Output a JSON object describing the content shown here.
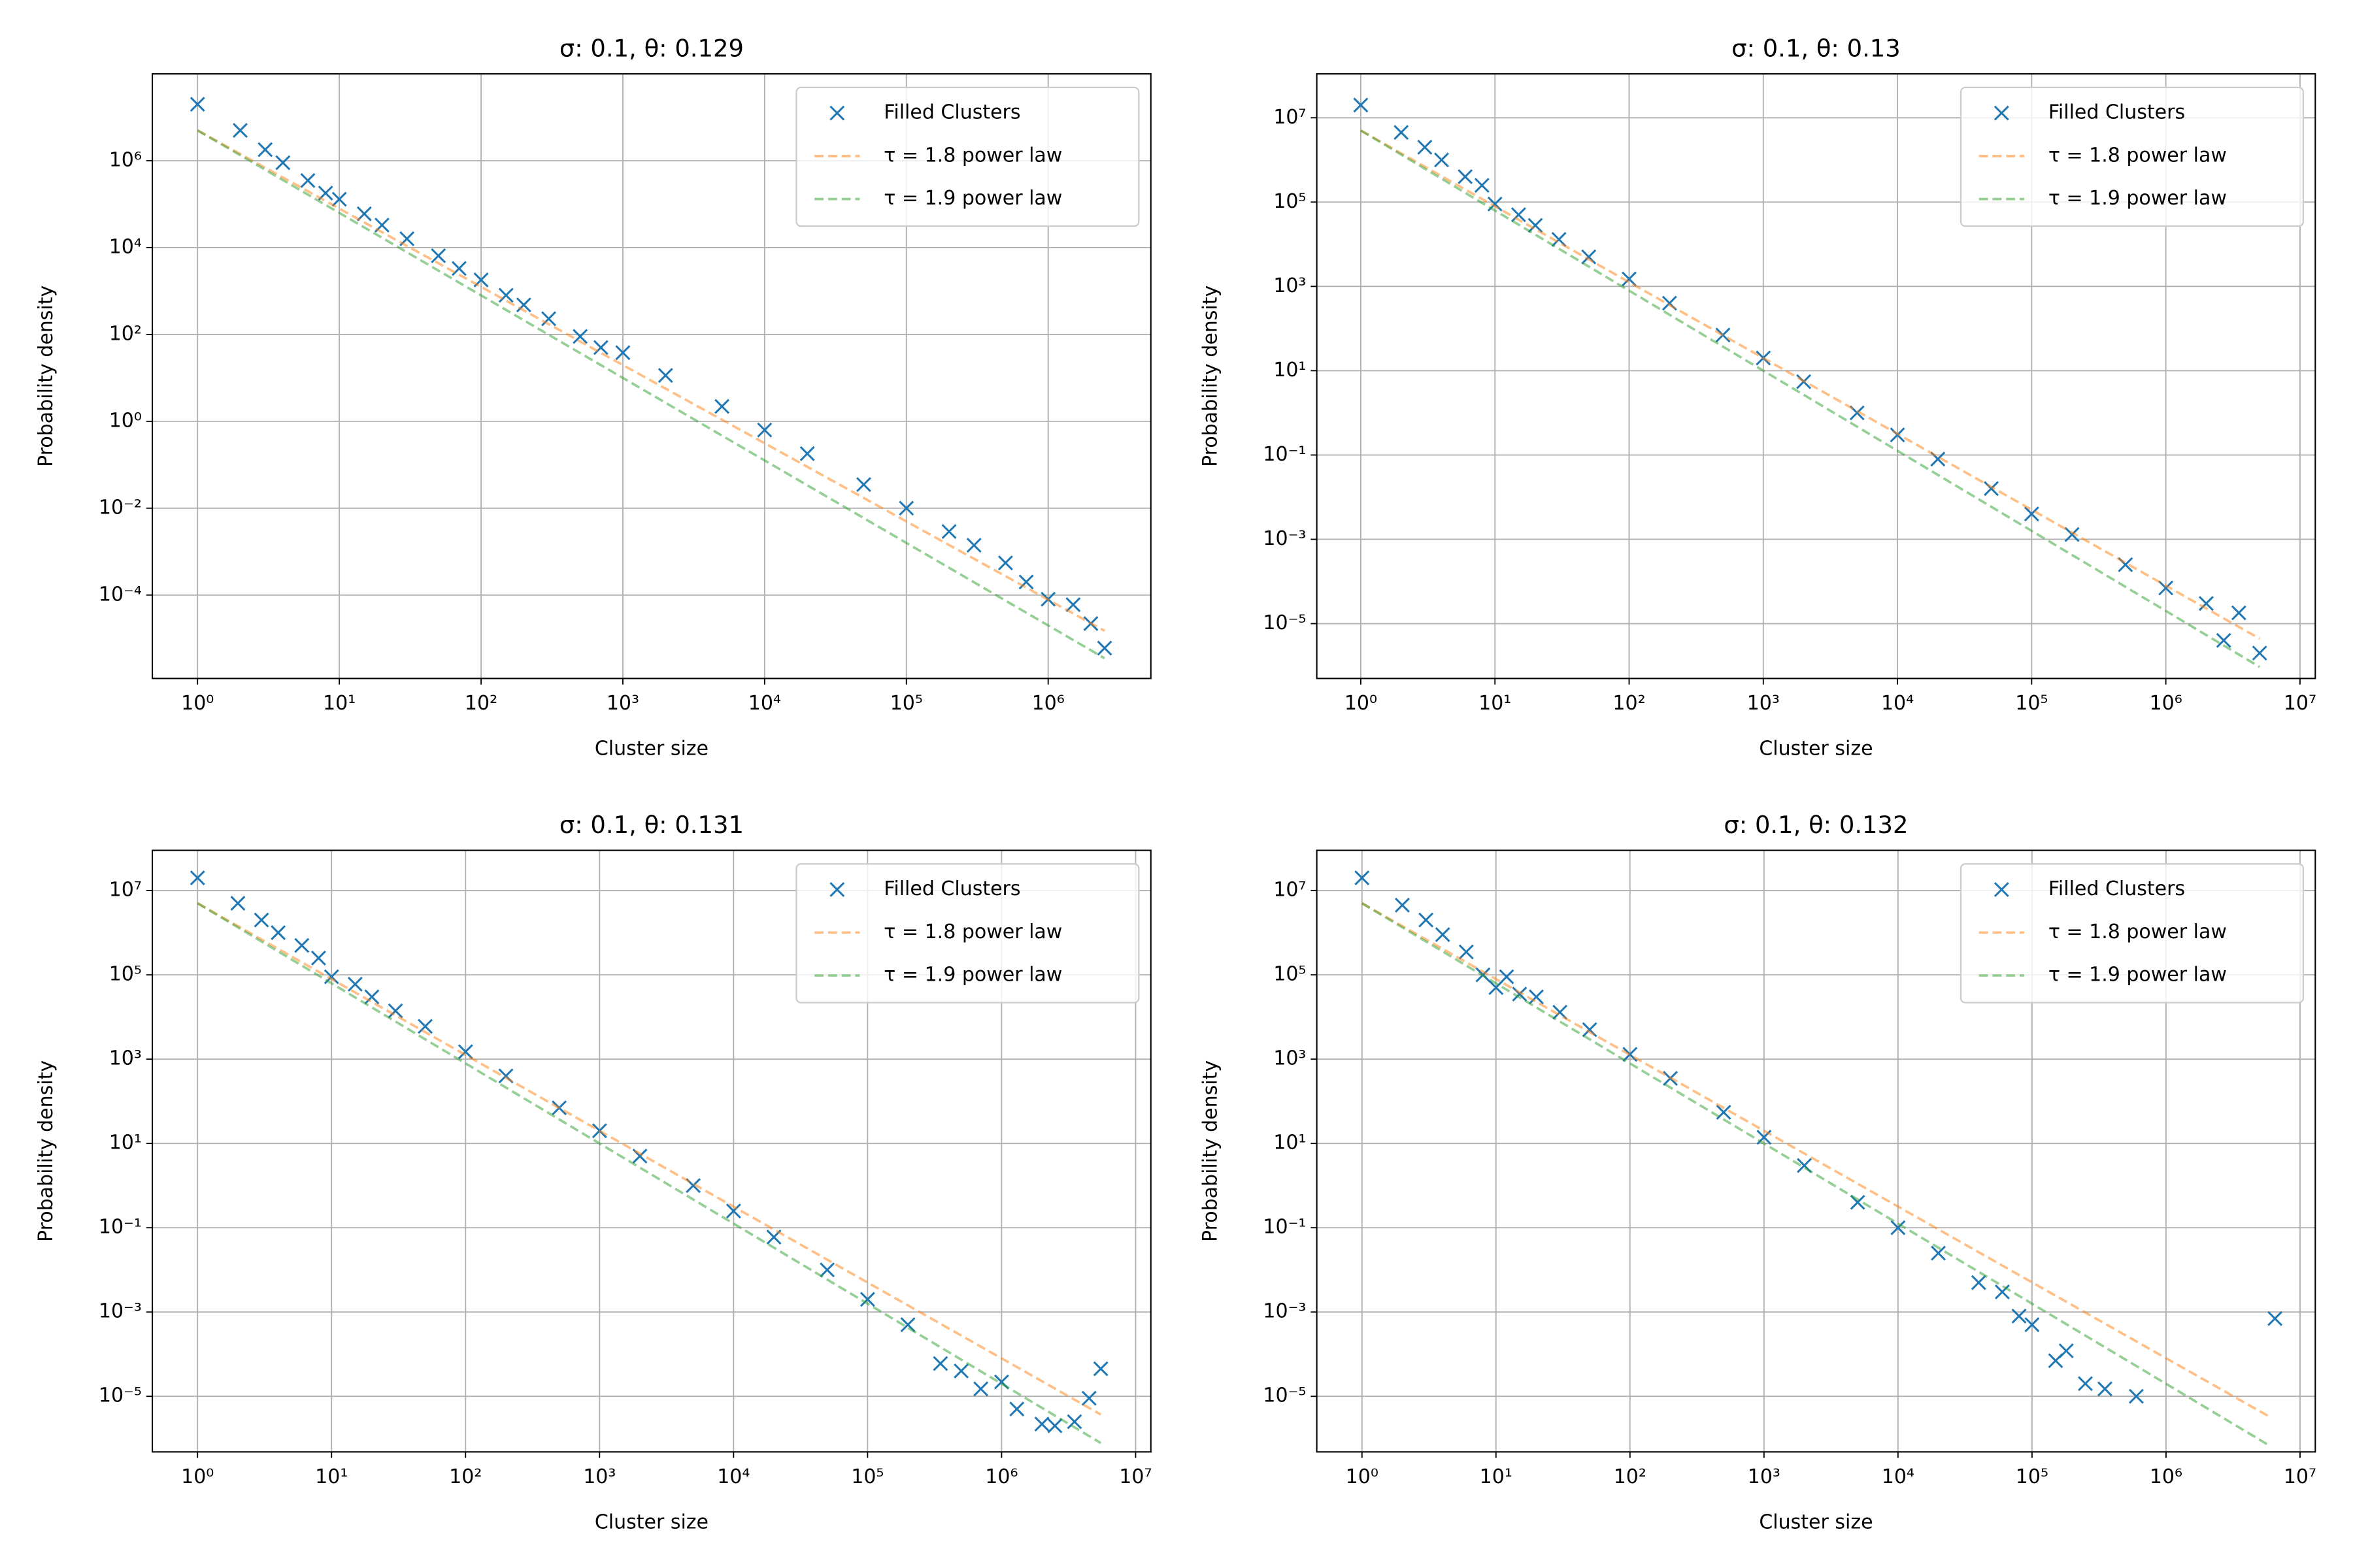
{
  "chart_data": [
    {
      "type": "scatter",
      "title": "σ: 0.1, θ: 0.129",
      "x_label": "Cluster size",
      "y_label": "Probability density",
      "xscale": "log",
      "yscale": "log",
      "grid": true,
      "legend": "upper right",
      "xlim": [
        0.48,
        5300000
      ],
      "ylim": [
        1.2e-06,
        100000000
      ],
      "xticks": [
        {
          "value": 1,
          "label": "10⁰"
        },
        {
          "value": 10,
          "label": "10¹"
        },
        {
          "value": 100,
          "label": "10²"
        },
        {
          "value": 1000,
          "label": "10³"
        },
        {
          "value": 10000,
          "label": "10⁴"
        },
        {
          "value": 100000,
          "label": "10⁵"
        },
        {
          "value": 1000000,
          "label": "10⁶"
        }
      ],
      "yticks": [
        {
          "value": 0.0001,
          "label": "10⁻⁴"
        },
        {
          "value": 0.01,
          "label": "10⁻²"
        },
        {
          "value": 1,
          "label": "10⁰"
        },
        {
          "value": 100,
          "label": "10²"
        },
        {
          "value": 10000,
          "label": "10⁴"
        },
        {
          "value": 1000000,
          "label": "10⁶"
        }
      ],
      "series": [
        {
          "name": "Filled Clusters",
          "color": "#1f77b4",
          "marker": "x",
          "x": [
            1,
            2,
            3,
            4,
            6,
            8,
            10,
            15,
            20,
            30,
            50,
            70,
            100,
            150,
            200,
            300,
            500,
            700,
            1000,
            2000,
            5000,
            10000,
            20000,
            50000,
            100000,
            200000,
            300000,
            500000,
            700000,
            1000000,
            1500000,
            2000000,
            2500000
          ],
          "values": [
            20000000,
            5000000,
            1800000,
            900000,
            350000,
            180000,
            130000,
            60000,
            33000,
            16000,
            6500,
            3300,
            1800,
            800,
            480,
            230,
            90,
            50,
            38,
            11.4,
            2.2,
            0.63,
            0.18,
            0.035,
            0.01,
            0.0029,
            0.0014,
            0.00055,
            0.0002,
            8e-05,
            6e-05,
            2.2e-05,
            6e-06
          ]
        },
        {
          "name": "τ = 1.8 power law",
          "color": "#ff7f0e",
          "linestyle": "--",
          "x": [
            1,
            2500000
          ],
          "values": [
            5000000,
            1.5e-05
          ]
        },
        {
          "name": "τ = 1.9 power law",
          "color": "#2ca02c",
          "linestyle": "--",
          "x": [
            1,
            2500000
          ],
          "values": [
            5000000,
            3.5e-06
          ]
        }
      ]
    },
    {
      "type": "scatter",
      "title": "σ: 0.1, θ: 0.13",
      "x_label": "Cluster size",
      "y_label": "Probability density",
      "xscale": "log",
      "yscale": "log",
      "grid": true,
      "legend": "upper right",
      "xlim": [
        0.47,
        13000000
      ],
      "ylim": [
        5e-07,
        110000000
      ],
      "xticks": [
        {
          "value": 1,
          "label": "10⁰"
        },
        {
          "value": 10,
          "label": "10¹"
        },
        {
          "value": 100,
          "label": "10²"
        },
        {
          "value": 1000,
          "label": "10³"
        },
        {
          "value": 10000,
          "label": "10⁴"
        },
        {
          "value": 100000,
          "label": "10⁵"
        },
        {
          "value": 1000000,
          "label": "10⁶"
        },
        {
          "value": 10000000,
          "label": "10⁷"
        }
      ],
      "yticks": [
        {
          "value": 1e-05,
          "label": "10⁻⁵"
        },
        {
          "value": 0.001,
          "label": "10⁻³"
        },
        {
          "value": 0.1,
          "label": "10⁻¹"
        },
        {
          "value": 10,
          "label": "10¹"
        },
        {
          "value": 1000,
          "label": "10³"
        },
        {
          "value": 100000,
          "label": "10⁵"
        },
        {
          "value": 10000000,
          "label": "10⁷"
        }
      ],
      "series": [
        {
          "name": "Filled Clusters",
          "color": "#1f77b4",
          "marker": "x",
          "x": [
            1,
            2,
            3,
            4,
            6,
            8,
            10,
            15,
            20,
            30,
            50,
            100,
            200,
            500,
            1000,
            2000,
            5000,
            10000,
            20000,
            50000,
            100000,
            200000,
            500000,
            1000000,
            2000000,
            2700000,
            3500000,
            5000000
          ],
          "values": [
            20000000,
            4500000,
            2000000,
            1000000,
            400000,
            250000,
            90000,
            50000,
            28000,
            13000,
            5000,
            1500,
            400,
            70,
            20,
            5.5,
            1,
            0.3,
            0.08,
            0.016,
            0.004,
            0.0013,
            0.00025,
            7e-05,
            3e-05,
            4e-06,
            1.8e-05,
            2e-06
          ]
        },
        {
          "name": "τ = 1.8 power law",
          "color": "#ff7f0e",
          "linestyle": "--",
          "x": [
            1,
            5000000
          ],
          "values": [
            5000000,
            4.4e-06
          ]
        },
        {
          "name": "τ = 1.9 power law",
          "color": "#2ca02c",
          "linestyle": "--",
          "x": [
            1,
            5000000
          ],
          "values": [
            5000000,
            9.4e-07
          ]
        }
      ]
    },
    {
      "type": "scatter",
      "title": "σ: 0.1, θ: 0.131",
      "x_label": "Cluster size",
      "y_label": "Probability density",
      "xscale": "log",
      "yscale": "log",
      "grid": true,
      "legend": "upper right",
      "xlim": [
        0.46,
        13000000
      ],
      "ylim": [
        4.8e-07,
        90000000
      ],
      "xticks": [
        {
          "value": 1,
          "label": "10⁰"
        },
        {
          "value": 10,
          "label": "10¹"
        },
        {
          "value": 100,
          "label": "10²"
        },
        {
          "value": 1000,
          "label": "10³"
        },
        {
          "value": 10000,
          "label": "10⁴"
        },
        {
          "value": 100000,
          "label": "10⁵"
        },
        {
          "value": 1000000,
          "label": "10⁶"
        },
        {
          "value": 10000000,
          "label": "10⁷"
        }
      ],
      "yticks": [
        {
          "value": 1e-05,
          "label": "10⁻⁵"
        },
        {
          "value": 0.001,
          "label": "10⁻³"
        },
        {
          "value": 0.1,
          "label": "10⁻¹"
        },
        {
          "value": 10,
          "label": "10¹"
        },
        {
          "value": 1000,
          "label": "10³"
        },
        {
          "value": 100000,
          "label": "10⁵"
        },
        {
          "value": 10000000,
          "label": "10⁷"
        }
      ],
      "series": [
        {
          "name": "Filled Clusters",
          "color": "#1f77b4",
          "marker": "x",
          "x": [
            1,
            2,
            3,
            4,
            6,
            8,
            10,
            15,
            20,
            30,
            50,
            100,
            200,
            500,
            1000,
            2000,
            5000,
            10000,
            20000,
            50000,
            100000,
            200000,
            350000,
            500000,
            700000,
            1000000,
            1300000,
            2000000,
            2500000,
            3500000,
            4500000,
            5500000
          ],
          "values": [
            20000000,
            5000000,
            2000000,
            1000000,
            500000,
            250000,
            90000,
            60000,
            30000,
            14000,
            6000,
            1500,
            400,
            70,
            20,
            5,
            1,
            0.25,
            0.06,
            0.01,
            0.002,
            0.0005,
            6e-05,
            4e-05,
            1.5e-05,
            2.2e-05,
            5e-06,
            2.2e-06,
            2e-06,
            2.5e-06,
            9e-06,
            4.5e-05
          ]
        },
        {
          "name": "τ = 1.8 power law",
          "color": "#ff7f0e",
          "linestyle": "--",
          "x": [
            1,
            5500000
          ],
          "values": [
            5000000,
            3.7e-06
          ]
        },
        {
          "name": "τ = 1.9 power law",
          "color": "#2ca02c",
          "linestyle": "--",
          "x": [
            1,
            5500000
          ],
          "values": [
            5000000,
            7.8e-07
          ]
        }
      ]
    },
    {
      "type": "scatter",
      "title": "σ: 0.1, θ: 0.132",
      "x_label": "Cluster size",
      "y_label": "Probability density",
      "xscale": "log",
      "yscale": "log",
      "grid": true,
      "legend": "upper right",
      "xlim": [
        0.46,
        13000000
      ],
      "ylim": [
        4.8e-07,
        90000000
      ],
      "xticks": [
        {
          "value": 1,
          "label": "10⁰"
        },
        {
          "value": 10,
          "label": "10¹"
        },
        {
          "value": 100,
          "label": "10²"
        },
        {
          "value": 1000,
          "label": "10³"
        },
        {
          "value": 10000,
          "label": "10⁴"
        },
        {
          "value": 100000,
          "label": "10⁵"
        },
        {
          "value": 1000000,
          "label": "10⁶"
        },
        {
          "value": 10000000,
          "label": "10⁷"
        }
      ],
      "yticks": [
        {
          "value": 1e-05,
          "label": "10⁻⁵"
        },
        {
          "value": 0.001,
          "label": "10⁻³"
        },
        {
          "value": 0.1,
          "label": "10⁻¹"
        },
        {
          "value": 10,
          "label": "10¹"
        },
        {
          "value": 1000,
          "label": "10³"
        },
        {
          "value": 100000,
          "label": "10⁵"
        },
        {
          "value": 10000000,
          "label": "10⁷"
        }
      ],
      "series": [
        {
          "name": "Filled Clusters",
          "color": "#1f77b4",
          "marker": "x",
          "x": [
            1,
            2,
            3,
            4,
            6,
            8,
            10,
            12,
            15,
            20,
            30,
            50,
            100,
            200,
            500,
            1000,
            2000,
            5000,
            10000,
            20000,
            40000,
            60000,
            80000,
            100000,
            150000,
            180000,
            250000,
            350000,
            600000,
            6500000
          ],
          "values": [
            20000000,
            4500000,
            2000000,
            900000,
            350000,
            100000,
            50000,
            90000,
            35000,
            30000,
            13000,
            5000,
            1300,
            350,
            55,
            14,
            3,
            0.4,
            0.1,
            0.025,
            0.005,
            0.003,
            0.0008,
            0.0005,
            7e-05,
            0.00012,
            2e-05,
            1.5e-05,
            1e-05,
            0.0007
          ]
        },
        {
          "name": "τ = 1.8 power law",
          "color": "#ff7f0e",
          "linestyle": "--",
          "x": [
            1,
            6000000
          ],
          "values": [
            5000000,
            3.2e-06
          ]
        },
        {
          "name": "τ = 1.9 power law",
          "color": "#2ca02c",
          "linestyle": "--",
          "x": [
            1,
            6000000
          ],
          "values": [
            5000000,
            6.6e-07
          ]
        }
      ]
    }
  ]
}
